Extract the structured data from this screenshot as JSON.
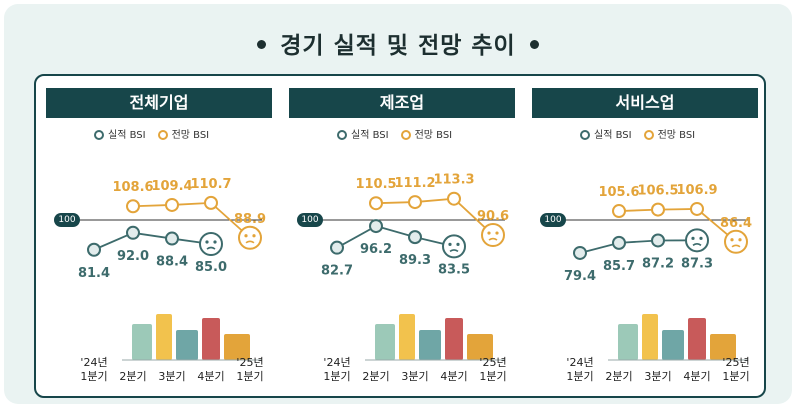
{
  "title": "경기 실적 및 전망 추이",
  "legend": {
    "actual": "실적 BSI",
    "forecast": "전망 BSI"
  },
  "colors": {
    "actual": "#3d6b6c",
    "forecast": "#e3a43a",
    "header": "#17464a",
    "baseline": "#333333"
  },
  "chart_data": [
    {
      "type": "line",
      "title": "전체기업",
      "categories": [
        "'24년\n1분기",
        "2분기",
        "3분기",
        "4분기",
        "'25년\n1분기"
      ],
      "baseline": 100,
      "series": [
        {
          "name": "실적 BSI",
          "values": [
            81.4,
            92.0,
            88.4,
            85.0,
            null
          ]
        },
        {
          "name": "전망 BSI",
          "values": [
            null,
            108.6,
            109.4,
            110.7,
            88.9
          ]
        }
      ]
    },
    {
      "type": "line",
      "title": "제조업",
      "categories": [
        "'24년\n1분기",
        "2분기",
        "3분기",
        "4분기",
        "'25년\n1분기"
      ],
      "baseline": 100,
      "series": [
        {
          "name": "실적 BSI",
          "values": [
            82.7,
            96.2,
            89.3,
            83.5,
            null
          ]
        },
        {
          "name": "전망 BSI",
          "values": [
            null,
            110.5,
            111.2,
            113.3,
            90.6
          ]
        }
      ]
    },
    {
      "type": "line",
      "title": "서비스업",
      "categories": [
        "'24년\n1분기",
        "2분기",
        "3분기",
        "4분기",
        "'25년\n1분기"
      ],
      "baseline": 100,
      "series": [
        {
          "name": "실적 BSI",
          "values": [
            79.4,
            85.7,
            87.2,
            87.3,
            null
          ]
        },
        {
          "name": "전망 BSI",
          "values": [
            null,
            105.6,
            106.5,
            106.9,
            86.4
          ]
        }
      ]
    }
  ]
}
